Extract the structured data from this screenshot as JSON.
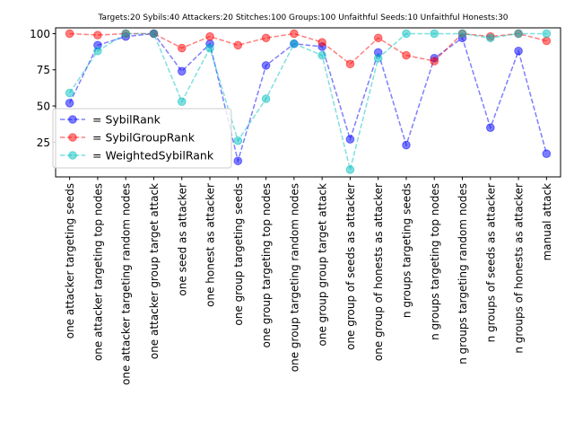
{
  "chart_data": {
    "type": "line",
    "title": "Targets:20 Sybils:40 Attackers:20 Stitches:100 Groups:100 Unfaithful Seeds:10 Unfaithful Honests:30",
    "xlabel": "",
    "ylabel": "",
    "ylim": [
      1,
      104
    ],
    "yticks": [
      25,
      50,
      75,
      100
    ],
    "grid": false,
    "legend_position": "center-left",
    "categories": [
      "one attacker targeting seeds",
      "one attacker targeting top nodes",
      "one attacker targeting random nodes",
      "one attacker group target attack",
      "one seed as attacker",
      "one honest as attacker",
      "one group targeting seeds",
      "one group targeting top nodes",
      "one group targeting random nodes",
      "one group group target attack",
      "one group of seeds as attacker",
      "one group of honests as attacker",
      "n groups targeting seeds",
      "n groups targeting top nodes",
      "n groups targeting random nodes",
      "n groups of seeds as attacker",
      "n groups of honests as attacker",
      "manual attack"
    ],
    "series": [
      {
        "name": "= SybilRank",
        "color": "#0000ff",
        "values": [
          52,
          92,
          98,
          100,
          74,
          93,
          12,
          78,
          93,
          91,
          27,
          87,
          23,
          83,
          97,
          35,
          88,
          17
        ]
      },
      {
        "name": "= SybilGroupRank",
        "color": "#ff0000",
        "values": [
          100,
          99,
          100,
          100,
          90,
          98,
          92,
          97,
          100,
          94,
          79,
          97,
          85,
          81,
          100,
          98,
          100,
          95
        ]
      },
      {
        "name": "= WeightedSybilRank",
        "color": "#00bfbf",
        "values": [
          59,
          88,
          100,
          100,
          53,
          90,
          26,
          55,
          93,
          85,
          6,
          83,
          100,
          100,
          100,
          97,
          100,
          100
        ]
      }
    ]
  }
}
